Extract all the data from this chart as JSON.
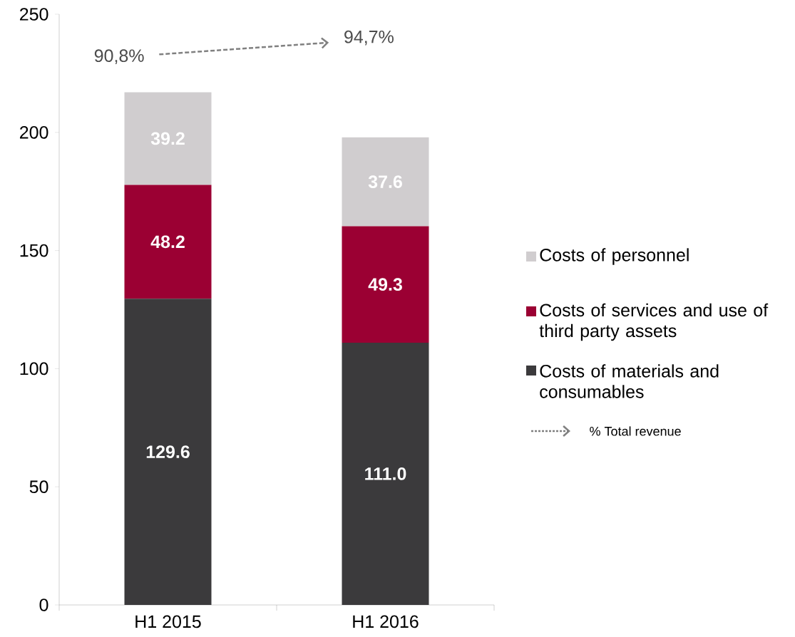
{
  "chart_data": {
    "type": "bar",
    "stacked": true,
    "categories": [
      "H1 2015",
      "H1 2016"
    ],
    "series": [
      {
        "name": "Costs of materials and consumables",
        "color": "#3b3a3c",
        "values": [
          129.6,
          111.0
        ],
        "value_labels": [
          "129.6",
          "111.0"
        ]
      },
      {
        "name": "Costs of services and use of third party assets",
        "color": "#9b0033",
        "values": [
          48.2,
          49.3
        ],
        "value_labels": [
          "48.2",
          "49.3"
        ]
      },
      {
        "name": "Costs of personnel",
        "color": "#d0cdcf",
        "values": [
          39.2,
          37.6
        ],
        "value_labels": [
          "39.2",
          "37.6"
        ]
      }
    ],
    "ylim": [
      0,
      250
    ],
    "yticks": [
      0,
      50,
      100,
      150,
      200,
      250
    ],
    "grid": false,
    "legend": "right",
    "annotations": [
      "90,8%",
      "94,7%",
      "% Total revenue"
    ]
  }
}
